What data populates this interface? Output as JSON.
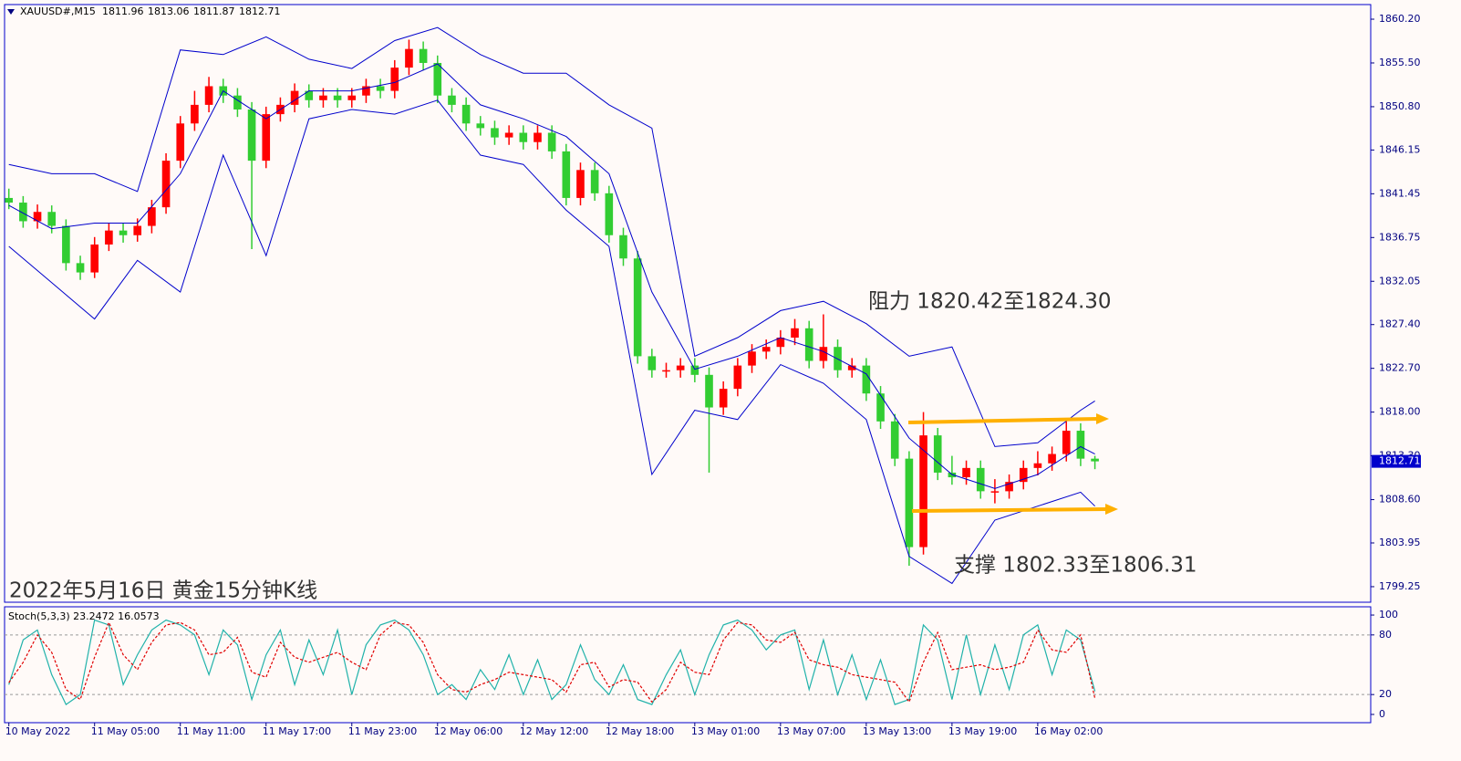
{
  "chart_data": [
    {
      "type": "candlestick",
      "symbol": "XAUUSD#,M15",
      "quote": [
        1811.96,
        1813.06,
        1811.87,
        1812.71
      ],
      "last_price": 1812.71,
      "annotations": [
        "2022年5月16日 黄金15分钟K线",
        "阻力 1820.42至1824.30",
        "支撑 1802.33至1806.31"
      ],
      "up_color": "#ff0000",
      "down_color": "#32cd32",
      "band_color": "#0000cc",
      "xlim": [
        -0.3,
        95.3
      ],
      "xticks": [
        {
          "value": 0,
          "label": "10 May 2022"
        },
        {
          "value": 6,
          "label": "11 May 05:00"
        },
        {
          "value": 12,
          "label": "11 May 11:00"
        },
        {
          "value": 18,
          "label": "11 May 17:00"
        },
        {
          "value": 24,
          "label": "11 May 23:00"
        },
        {
          "value": 30,
          "label": "12 May 06:00"
        },
        {
          "value": 36,
          "label": "12 May 12:00"
        },
        {
          "value": 42,
          "label": "12 May 18:00"
        },
        {
          "value": 48,
          "label": "13 May 01:00"
        },
        {
          "value": 54,
          "label": "13 May 07:00"
        },
        {
          "value": 60,
          "label": "13 May 13:00"
        },
        {
          "value": 66,
          "label": "13 May 19:00"
        },
        {
          "value": 72,
          "label": "16 May 02:00"
        }
      ],
      "ylim": [
        1797.58,
        1861.77
      ],
      "yticks": [
        {
          "value": 1860.2,
          "label": "1860.20"
        },
        {
          "value": 1855.5,
          "label": "1855.50"
        },
        {
          "value": 1850.8,
          "label": "1850.80"
        },
        {
          "value": 1846.15,
          "label": "1846.15"
        },
        {
          "value": 1841.45,
          "label": "1841.45"
        },
        {
          "value": 1836.75,
          "label": "1836.75"
        },
        {
          "value": 1832.05,
          "label": "1832.05"
        },
        {
          "value": 1827.4,
          "label": "1827.40"
        },
        {
          "value": 1822.7,
          "label": "1822.70"
        },
        {
          "value": 1818,
          "label": "1818.00"
        },
        {
          "value": 1813.3,
          "label": "1813.30"
        },
        {
          "value": 1808.6,
          "label": "1808.60"
        },
        {
          "value": 1803.95,
          "label": "1803.95"
        },
        {
          "value": 1799.25,
          "label": "1799.25"
        }
      ],
      "ohlc": [
        [
          1841,
          1842,
          1839.8,
          1840.5
        ],
        [
          1840.5,
          1841.2,
          1837.8,
          1838.5
        ],
        [
          1838.5,
          1840.3,
          1837.7,
          1839.5
        ],
        [
          1839.5,
          1840.2,
          1837.2,
          1838
        ],
        [
          1838,
          1838.7,
          1833.2,
          1834
        ],
        [
          1834,
          1834.8,
          1832.2,
          1833
        ],
        [
          1833,
          1836.8,
          1832.4,
          1836
        ],
        [
          1836,
          1838.3,
          1835.3,
          1837.5
        ],
        [
          1837.5,
          1838.3,
          1836.2,
          1837
        ],
        [
          1837,
          1838.8,
          1836.3,
          1838
        ],
        [
          1838,
          1840.8,
          1837.2,
          1840
        ],
        [
          1840,
          1845.8,
          1839.3,
          1845
        ],
        [
          1845,
          1849.8,
          1844.2,
          1849
        ],
        [
          1849,
          1852.5,
          1848.2,
          1851
        ],
        [
          1851,
          1854,
          1850.2,
          1853
        ],
        [
          1853,
          1853.8,
          1851.2,
          1852
        ],
        [
          1852,
          1852.8,
          1849.7,
          1850.5
        ],
        [
          1850.5,
          1851.3,
          1835.5,
          1845
        ],
        [
          1845,
          1850.8,
          1844.2,
          1850
        ],
        [
          1850,
          1851.8,
          1849.2,
          1851
        ],
        [
          1851,
          1853.3,
          1850.2,
          1852.5
        ],
        [
          1852.5,
          1853.2,
          1850.7,
          1851.5
        ],
        [
          1851.5,
          1852.8,
          1850.7,
          1852
        ],
        [
          1852,
          1852.8,
          1850.7,
          1851.5
        ],
        [
          1851.5,
          1852.8,
          1850.7,
          1852
        ],
        [
          1852,
          1853.8,
          1851.2,
          1853
        ],
        [
          1853,
          1853.8,
          1851.7,
          1852.5
        ],
        [
          1852.5,
          1855.8,
          1851.7,
          1855
        ],
        [
          1855,
          1858,
          1854.2,
          1857
        ],
        [
          1857,
          1857.8,
          1854.7,
          1855.5
        ],
        [
          1855.5,
          1856.3,
          1851.2,
          1852
        ],
        [
          1852,
          1852.8,
          1850.2,
          1851
        ],
        [
          1851,
          1851.8,
          1848.2,
          1849
        ],
        [
          1849,
          1849.8,
          1847.7,
          1848.5
        ],
        [
          1848.5,
          1849.3,
          1846.7,
          1847.5
        ],
        [
          1847.5,
          1848.8,
          1846.7,
          1848
        ],
        [
          1848,
          1848.8,
          1846.2,
          1847
        ],
        [
          1847,
          1848.8,
          1846.2,
          1848
        ],
        [
          1848,
          1848.8,
          1845.2,
          1846
        ],
        [
          1846,
          1846.8,
          1840.2,
          1841
        ],
        [
          1841,
          1844.8,
          1840.2,
          1844
        ],
        [
          1844,
          1844.8,
          1840.7,
          1841.5
        ],
        [
          1841.5,
          1842.3,
          1836.2,
          1837
        ],
        [
          1837,
          1837.8,
          1833.7,
          1834.5
        ],
        [
          1834.5,
          1835.3,
          1823.2,
          1824
        ],
        [
          1824,
          1824.8,
          1821.7,
          1822.5
        ],
        [
          1822.5,
          1823.3,
          1821.7,
          1822.5
        ],
        [
          1822.5,
          1823.8,
          1821.7,
          1823
        ],
        [
          1823,
          1823.8,
          1821.2,
          1822
        ],
        [
          1822,
          1822.8,
          1811.5,
          1818.5
        ],
        [
          1818.5,
          1821.3,
          1817.7,
          1820.5
        ],
        [
          1820.5,
          1823.8,
          1819.7,
          1823
        ],
        [
          1823,
          1825.3,
          1822.2,
          1824.5
        ],
        [
          1824.5,
          1825.8,
          1823.7,
          1825
        ],
        [
          1825,
          1826.8,
          1824.2,
          1826
        ],
        [
          1826,
          1828,
          1825.2,
          1827
        ],
        [
          1827,
          1827.8,
          1822.7,
          1823.5
        ],
        [
          1823.5,
          1828.5,
          1822.7,
          1825
        ],
        [
          1825,
          1825.8,
          1821.7,
          1822.5
        ],
        [
          1822.5,
          1823.8,
          1821.7,
          1823
        ],
        [
          1823,
          1823.8,
          1819.2,
          1820
        ],
        [
          1820,
          1820.8,
          1816.2,
          1817
        ],
        [
          1817,
          1817.8,
          1812.2,
          1813
        ],
        [
          1813,
          1813.8,
          1801.5,
          1803.5
        ],
        [
          1803.5,
          1818,
          1802.7,
          1815.5
        ],
        [
          1815.5,
          1816.3,
          1810.7,
          1811.5
        ],
        [
          1811.5,
          1813.3,
          1810.2,
          1811
        ],
        [
          1811,
          1812.8,
          1810.2,
          1812
        ],
        [
          1812,
          1812.8,
          1808.7,
          1809.5
        ],
        [
          1809.5,
          1810.8,
          1808.2,
          1809.5
        ],
        [
          1809.5,
          1811.3,
          1808.7,
          1810.5
        ],
        [
          1810.5,
          1812.8,
          1809.7,
          1812
        ],
        [
          1812,
          1813.8,
          1811.2,
          1812.5
        ],
        [
          1812.5,
          1814.3,
          1811.7,
          1813.5
        ],
        [
          1813.5,
          1817.3,
          1812.7,
          1816
        ],
        [
          1816,
          1816.8,
          1812.2,
          1813
        ],
        [
          1813,
          1813.3,
          1811.87,
          1812.71
        ]
      ],
      "bands": {
        "x": [
          0,
          3,
          6,
          9,
          12,
          15,
          18,
          21,
          24,
          27,
          30,
          33,
          36,
          39,
          42,
          45,
          48,
          51,
          54,
          57,
          60,
          63,
          66,
          69,
          72,
          75,
          76
        ],
        "upper": [
          1844.6,
          1843.6,
          1843.6,
          1841.7,
          1856.9,
          1856.4,
          1858.3,
          1855.9,
          1854.9,
          1857.9,
          1859.3,
          1856.4,
          1854.4,
          1854.4,
          1851,
          1848.5,
          1824,
          1826,
          1828.9,
          1829.9,
          1827.5,
          1824,
          1825,
          1814.3,
          1814.7,
          1818.2,
          1819.2
        ],
        "middle": [
          1840.2,
          1837.7,
          1838.3,
          1838.3,
          1843.6,
          1852.5,
          1849.5,
          1852.5,
          1852.5,
          1853.4,
          1855.4,
          1851,
          1849.5,
          1847.6,
          1843.6,
          1830.9,
          1822.6,
          1824,
          1826,
          1824.5,
          1822.1,
          1815.2,
          1811.3,
          1809.8,
          1811.3,
          1814.3,
          1813.5
        ],
        "lower": [
          1835.8,
          1831.9,
          1828,
          1834.3,
          1830.9,
          1845.6,
          1834.8,
          1849.5,
          1850.5,
          1850,
          1851.5,
          1845.6,
          1844.6,
          1839.7,
          1835.8,
          1811.3,
          1818.2,
          1817.2,
          1823.1,
          1821.1,
          1817.2,
          1802.5,
          1799.6,
          1806.4,
          1807.9,
          1809.4,
          1807.9
        ]
      }
    },
    {
      "type": "line",
      "title": "Stoch(5,3,3) 23.2472 16.0573",
      "ylim": [
        -8.3,
        108.3
      ],
      "yticks": [
        0,
        20,
        80,
        100
      ],
      "levels": [
        20,
        80
      ],
      "series": [
        {
          "color": "#20b2aa",
          "dash": false,
          "values": [
            30,
            75,
            85,
            40,
            10,
            20,
            95,
            90,
            30,
            60,
            85,
            95,
            90,
            80,
            40,
            85,
            70,
            15,
            60,
            85,
            30,
            75,
            40,
            85,
            20,
            70,
            90,
            95,
            85,
            60,
            20,
            30,
            15,
            45,
            25,
            60,
            20,
            55,
            15,
            30,
            70,
            35,
            20,
            50,
            15,
            10,
            40,
            65,
            20,
            60,
            90,
            95,
            85,
            65,
            80,
            85,
            25,
            75,
            20,
            60,
            15,
            55,
            10,
            15,
            90,
            75,
            15,
            80,
            20,
            70,
            25,
            80,
            90,
            40,
            85,
            75,
            23.2472
          ]
        },
        {
          "color": "#e00000",
          "dash": true,
          "values": [
            32,
            52.5,
            80,
            62.5,
            25,
            15,
            57.5,
            92.5,
            60,
            45,
            72.5,
            90,
            92.5,
            85,
            60,
            62.5,
            77.5,
            42.5,
            37.5,
            72.5,
            57.5,
            52.5,
            57.5,
            62.5,
            52.5,
            45,
            80,
            92.5,
            90,
            72.5,
            40,
            25,
            22.5,
            30,
            35,
            42.5,
            40,
            37.5,
            35,
            22.5,
            50,
            52.5,
            27.5,
            35,
            32.5,
            12.5,
            25,
            52.5,
            42.5,
            40,
            75,
            92.5,
            90,
            75,
            72.5,
            82.5,
            55,
            50,
            47.5,
            40,
            37.5,
            35,
            32.5,
            12.5,
            52.5,
            82.5,
            45,
            47.5,
            50,
            45,
            47.5,
            52.5,
            85,
            65,
            62.5,
            80,
            16.0573
          ]
        }
      ]
    }
  ]
}
